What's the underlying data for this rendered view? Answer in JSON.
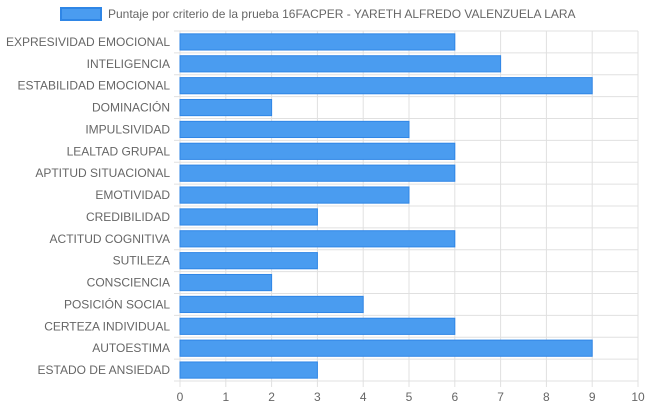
{
  "chart_data": {
    "type": "bar",
    "orientation": "horizontal",
    "legend": {
      "position": "top",
      "entries": [
        "Puntaje por criterio de la prueba 16FACPER - YARETH ALFREDO VALENZUELA LARA"
      ]
    },
    "categories": [
      "EXPRESIVIDAD EMOCIONAL",
      "INTELIGENCIA",
      "ESTABILIDAD EMOCIONAL",
      "DOMINACIÓN",
      "IMPULSIVIDAD",
      "LEALTAD GRUPAL",
      "APTITUD SITUACIONAL",
      "EMOTIVIDAD",
      "CREDIBILIDAD",
      "ACTITUD COGNITIVA",
      "SUTILEZA",
      "CONSCIENCIA",
      "POSICIÓN SOCIAL",
      "CERTEZA INDIVIDUAL",
      "AUTOESTIMA",
      "ESTADO DE ANSIEDAD"
    ],
    "series": [
      {
        "name": "Puntaje por criterio de la prueba 16FACPER - YARETH ALFREDO VALENZUELA LARA",
        "values": [
          6,
          7,
          9,
          2,
          5,
          6,
          6,
          5,
          3,
          6,
          3,
          2,
          4,
          6,
          9,
          3
        ]
      }
    ],
    "xlim": [
      0,
      10
    ],
    "xticks": [
      "0",
      "1",
      "2",
      "3",
      "4",
      "5",
      "6",
      "7",
      "8",
      "9",
      "10"
    ],
    "grid": true,
    "colors": {
      "bar_fill": "#4a9cf0",
      "bar_border": "#2f86e6",
      "grid": "#e0e0e0",
      "text": "#666666"
    }
  }
}
